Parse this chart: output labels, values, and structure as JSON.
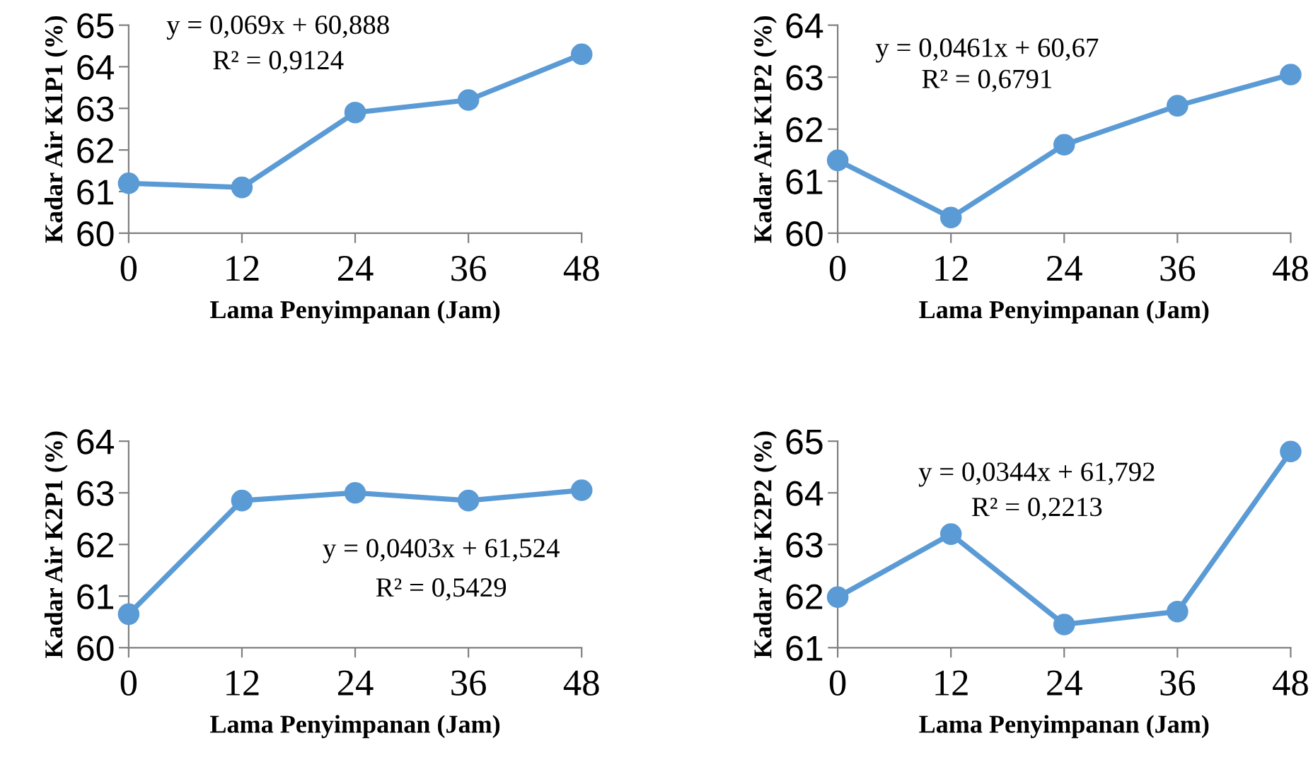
{
  "chart_data": [
    {
      "type": "line",
      "xlabel": "Lama Penyimpanan (Jam)",
      "ylabel": "Kadar Air K1P1 (%)",
      "categories": [
        "0",
        "12",
        "24",
        "36",
        "48"
      ],
      "series": [
        {
          "color": "#5b9bd5",
          "values": [
            61.2,
            61.1,
            62.9,
            63.2,
            64.3
          ]
        }
      ],
      "ylim": [
        60,
        65
      ],
      "yticks": [
        60,
        61,
        62,
        63,
        64,
        65
      ],
      "marker": "circle",
      "line_style": "solid",
      "annotations": [
        "y = 0,069x + 60,888",
        "R² = 0,9124"
      ]
    },
    {
      "type": "line",
      "xlabel": "Lama Penyimpanan (Jam)",
      "ylabel": "Kadar Air K1P2 (%)",
      "categories": [
        "0",
        "12",
        "24",
        "36",
        "48"
      ],
      "series": [
        {
          "color": "#5b9bd5",
          "values": [
            61.4,
            60.3,
            61.7,
            62.45,
            63.05
          ]
        }
      ],
      "ylim": [
        60,
        64
      ],
      "yticks": [
        60,
        61,
        62,
        63,
        64
      ],
      "marker": "circle",
      "line_style": "solid",
      "annotations": [
        "y = 0,0461x + 60,67",
        "R² = 0,6791"
      ]
    },
    {
      "type": "line",
      "xlabel": "Lama Penyimpanan (Jam)",
      "ylabel": "Kadar Air K2P1 (%)",
      "categories": [
        "0",
        "12",
        "24",
        "36",
        "48"
      ],
      "series": [
        {
          "color": "#5b9bd5",
          "values": [
            60.65,
            62.85,
            63.0,
            62.85,
            63.05
          ]
        }
      ],
      "ylim": [
        60,
        64
      ],
      "yticks": [
        60,
        61,
        62,
        63,
        64
      ],
      "marker": "circle",
      "line_style": "solid",
      "annotations": [
        "y = 0,0403x + 61,524",
        "R² = 0,5429"
      ]
    },
    {
      "type": "line",
      "xlabel": "Lama Penyimpanan (Jam)",
      "ylabel": "Kadar Air K2P2 (%)",
      "categories": [
        "0",
        "12",
        "24",
        "36",
        "48"
      ],
      "series": [
        {
          "color": "#5b9bd5",
          "values": [
            61.98,
            63.2,
            61.45,
            61.7,
            64.8
          ]
        }
      ],
      "ylim": [
        61,
        65
      ],
      "yticks": [
        61,
        62,
        63,
        64,
        65
      ],
      "marker": "circle",
      "line_style": "solid",
      "annotations": [
        "y = 0,0344x + 61,792",
        "R² = 0,2213"
      ]
    }
  ]
}
